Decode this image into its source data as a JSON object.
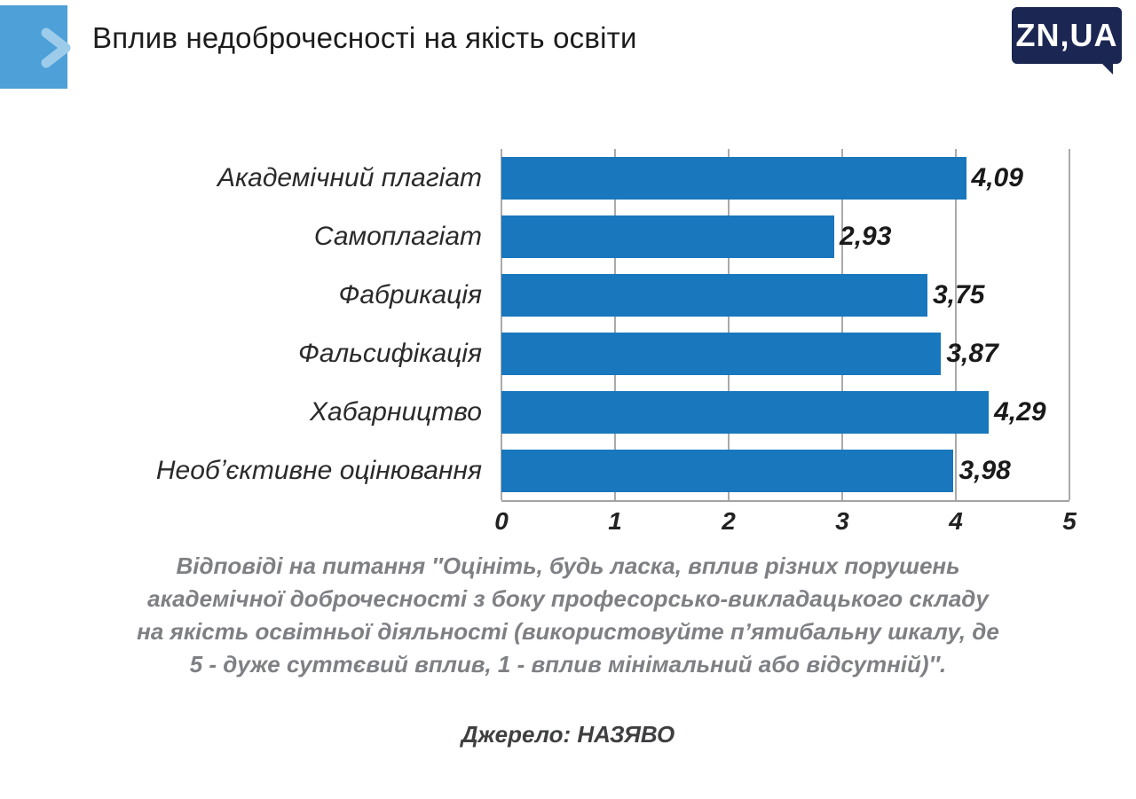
{
  "header": {
    "title": "Вплив недоброчесності на якість освіти"
  },
  "logo": {
    "text": "ZN,UA",
    "background": "#1b2752"
  },
  "accent": {
    "square_color": "#4da0d8",
    "chevron_color": "#9dcceb"
  },
  "chart_data": {
    "type": "bar",
    "orientation": "horizontal",
    "title": "Вплив недоброчесності на якість освіти",
    "categories": [
      "Академічний плагіат",
      "Самоплагіат",
      "Фабрикація",
      "Фальсифікація",
      "Хабарництво",
      "Необʼєктивне оцінювання"
    ],
    "values": [
      4.09,
      2.93,
      3.75,
      3.87,
      4.29,
      3.98
    ],
    "value_labels": [
      "4,09",
      "2,93",
      "3,75",
      "3,87",
      "4,29",
      "3,98"
    ],
    "xlim": [
      0,
      5
    ],
    "ticks": [
      "0",
      "1",
      "2",
      "3",
      "4",
      "5"
    ],
    "bar_color": "#1877bd",
    "grid": true,
    "legend": "none"
  },
  "caption": {
    "lines": [
      "Відповіді на питання ″Оцініть, будь ласка, вплив різних порушень",
      "академічної доброчесності з боку професорсько-викладацького складу",
      "на якість освітньої діяльності (використовуйте пʼятибальну шкалу, де",
      "5 - дуже суттєвий вплив, 1 - вплив мінімальний або відсутній)″."
    ]
  },
  "source": {
    "text": "Джерело: НАЗЯВО"
  }
}
